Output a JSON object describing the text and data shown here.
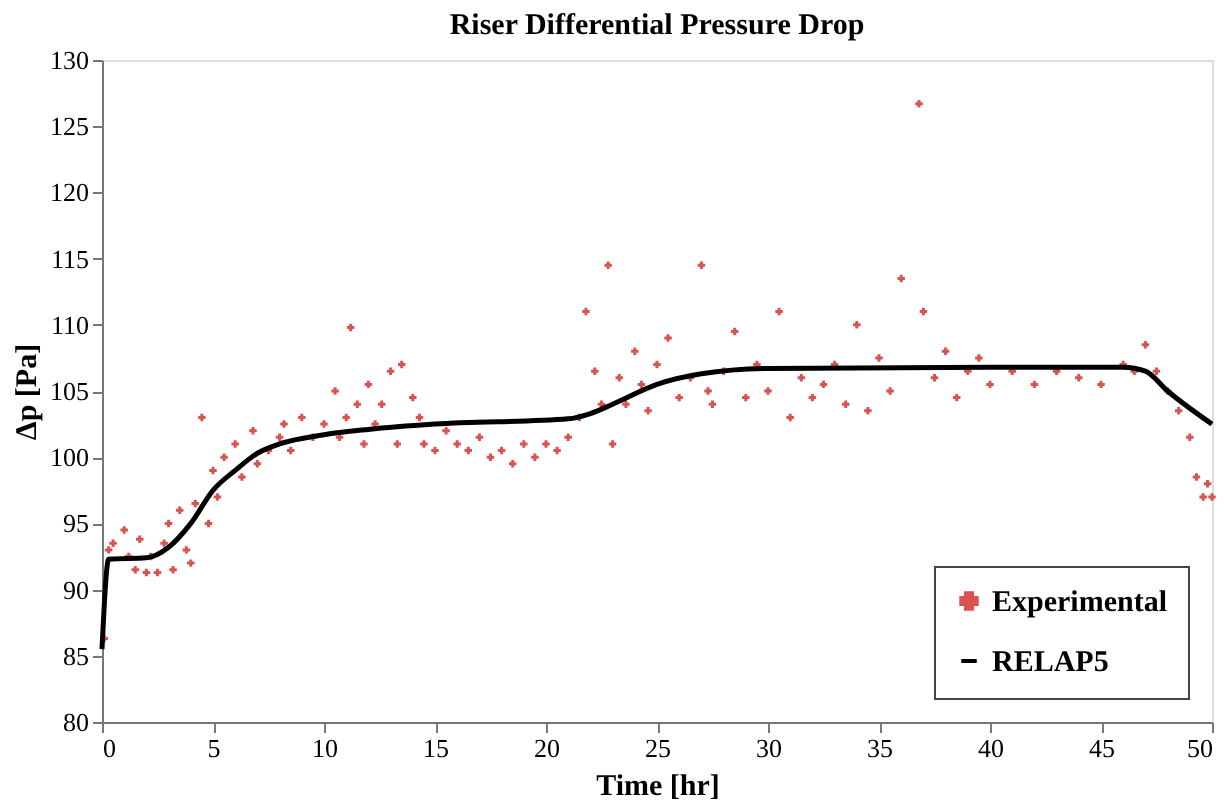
{
  "chart_data": {
    "type": "scatter",
    "title": "Riser Differential Pressure Drop",
    "xlabel": "Time [hr]",
    "ylabel": "Δp [Pa]",
    "xlim": [
      0,
      50
    ],
    "xticks": [
      0,
      5,
      10,
      15,
      20,
      25,
      30,
      35,
      40,
      45,
      50
    ],
    "ylim": [
      80,
      130
    ],
    "yticks": [
      80,
      85,
      90,
      95,
      100,
      105,
      110,
      115,
      120,
      125,
      130
    ],
    "grid": false,
    "legend": "bottom right",
    "series": [
      {
        "name": "Experimental",
        "marker": "cross",
        "color": "#d9534f",
        "x": [
          0.1,
          0.3,
          0.5,
          1,
          1.2,
          1.5,
          1.7,
          2,
          2.2,
          2.5,
          2.8,
          3,
          3.2,
          3.5,
          3.8,
          4,
          4.2,
          4.5,
          4.8,
          5,
          5.2,
          5.5,
          6,
          6.3,
          6.8,
          7,
          7.5,
          8,
          8.2,
          8.5,
          9,
          9.5,
          10,
          10.5,
          10.7,
          11,
          11.2,
          11.5,
          11.8,
          12,
          12.3,
          12.6,
          13,
          13.3,
          13.5,
          14,
          14.3,
          14.5,
          15,
          15.5,
          16,
          16.5,
          17,
          17.5,
          18,
          18.5,
          19,
          19.5,
          20,
          20.5,
          21,
          21.5,
          21.8,
          22.2,
          22.5,
          22.8,
          23,
          23.3,
          23.6,
          24,
          24.3,
          24.6,
          25,
          25.5,
          26,
          26.5,
          27,
          27.3,
          27.5,
          28,
          28.5,
          29,
          29.5,
          30,
          30.5,
          31,
          31.5,
          32,
          32.5,
          33,
          33.5,
          34,
          34.5,
          35,
          35.5,
          36,
          36.8,
          37,
          37.5,
          38,
          38.5,
          39,
          39.5,
          40,
          41,
          42,
          43,
          44,
          45,
          46,
          46.5,
          47,
          47.5,
          48,
          48.5,
          49,
          49.3,
          49.6,
          49.8,
          50
        ],
        "values": [
          86.3,
          93,
          93.5,
          94.5,
          92.5,
          91.5,
          93.8,
          91.3,
          92.5,
          91.3,
          93.5,
          95,
          91.5,
          96,
          93,
          92,
          96.5,
          103,
          95,
          99,
          97,
          100,
          101,
          98.5,
          102,
          99.5,
          100.5,
          101.5,
          102.5,
          100.5,
          103,
          101.5,
          102.5,
          105,
          101.5,
          103,
          109.8,
          104,
          101,
          105.5,
          102.5,
          104,
          106.5,
          101,
          107,
          104.5,
          103,
          101,
          100.5,
          102,
          101,
          100.5,
          101.5,
          100,
          100.5,
          99.5,
          101,
          100,
          101,
          100.5,
          101.5,
          103,
          111,
          106.5,
          104,
          114.5,
          101,
          106,
          104,
          108,
          105.5,
          103.5,
          107,
          109,
          104.5,
          106,
          114.5,
          105,
          104,
          106.5,
          109.5,
          104.5,
          107,
          105,
          111,
          103,
          106,
          104.5,
          105.5,
          107,
          104,
          110,
          103.5,
          107.5,
          105,
          113.5,
          126.7,
          111,
          106,
          108,
          104.5,
          106.5,
          107.5,
          105.5,
          106.5,
          105.5,
          106.5,
          106,
          105.5,
          107,
          106.5,
          108.5,
          106.5,
          105,
          103.5,
          101.5,
          98.5,
          97,
          98,
          97
        ]
      },
      {
        "name": "RELAP5",
        "type": "line",
        "marker": "none",
        "color": "#000000",
        "line_style": "solid",
        "x": [
          0,
          0.3,
          2,
          3,
          4,
          5,
          6,
          7,
          8,
          10,
          12,
          15,
          21,
          22,
          23,
          25,
          27,
          30,
          40,
          46,
          47,
          48,
          50
        ],
        "values": [
          85.5,
          92.3,
          92.4,
          93.2,
          95,
          97.5,
          99,
          100.3,
          101,
          101.7,
          102.1,
          102.5,
          102.9,
          103.3,
          104,
          105.5,
          106.3,
          106.7,
          106.8,
          106.8,
          106.5,
          105,
          102.5
        ]
      }
    ]
  }
}
